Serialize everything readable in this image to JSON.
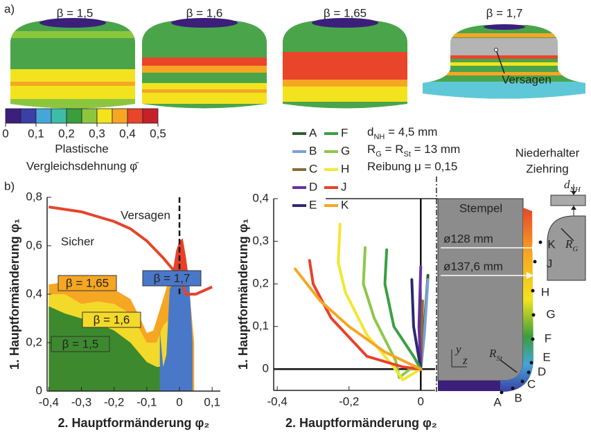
{
  "panel_a": {
    "label": "a)",
    "images": [
      "β = 1,5",
      "β = 1,6",
      "β = 1,65",
      "β = 1,7"
    ],
    "failure_label": "Versagen",
    "colorbar": {
      "colors": [
        "#3c1f7a",
        "#3b3fa6",
        "#45a6d8",
        "#3fbca8",
        "#3a9e3c",
        "#8cc63f",
        "#f3e31e",
        "#f6a623",
        "#e8452a",
        "#c8202a"
      ],
      "lim": [
        0,
        0.5
      ],
      "ticks": [
        0,
        {
          "value": 0.1,
          "label": "0,1"
        },
        {
          "value": 0.2,
          "label": "0,2"
        },
        {
          "value": 0.3,
          "label": "0,3"
        },
        {
          "value": 0.4,
          "label": "0,4"
        },
        {
          "value": 0.5,
          "label": "0,5"
        }
      ],
      "title": [
        "Plastische",
        "Vergleichsdehnung φ̄"
      ]
    }
  },
  "panel_b_label": "b)",
  "chart_data": [
    {
      "type": "area",
      "ylabel": "1. Hauptformänderung φ₁",
      "xlabel": "2. Hauptformänderung φ₂",
      "xlim": [
        -0.405,
        0.125
      ],
      "ylim": [
        0,
        0.8
      ],
      "xticks": [
        {
          "value": -0.4,
          "label": "-0,4"
        },
        {
          "value": -0.3,
          "label": "-0,3"
        },
        {
          "value": -0.2,
          "label": "-0,2"
        },
        {
          "value": -0.1,
          "label": "-0,1"
        },
        0,
        {
          "value": 0.1,
          "label": "0,1"
        }
      ],
      "yticks": [
        0,
        {
          "value": 0.2,
          "label": "0,2"
        },
        {
          "value": 0.4,
          "label": "0,4"
        },
        {
          "value": 0.6,
          "label": "0,6"
        },
        {
          "value": 0.8,
          "label": "0,8"
        }
      ],
      "x_zero_line": "dashed",
      "annotations": [
        "Sicher",
        "Versagen"
      ],
      "series": [
        {
          "name": "β = 1,65",
          "color": "#f5a623",
          "x": [
            -0.4,
            -0.35,
            -0.3,
            -0.25,
            -0.2,
            -0.15,
            -0.12,
            -0.1,
            -0.08,
            -0.05,
            -0.03,
            0,
            0.03,
            0.045
          ],
          "values": [
            0.44,
            0.45,
            0.43,
            0.44,
            0.42,
            0.38,
            0.3,
            0.24,
            0.25,
            0.38,
            0.47,
            0.48,
            0.42,
            0.2
          ]
        },
        {
          "name": "β = 1,6",
          "color": "#f3d92a",
          "x": [
            -0.4,
            -0.35,
            -0.3,
            -0.25,
            -0.2,
            -0.15,
            -0.12,
            -0.1,
            -0.07,
            -0.05,
            -0.03,
            0,
            0.02
          ],
          "values": [
            0.4,
            0.4,
            0.36,
            0.37,
            0.36,
            0.32,
            0.25,
            0.2,
            0.2,
            0.27,
            0.3,
            0.25,
            0.1
          ]
        },
        {
          "name": "β = 1,5",
          "color": "#3d8a2e",
          "x": [
            -0.4,
            -0.35,
            -0.3,
            -0.25,
            -0.2,
            -0.15,
            -0.1,
            -0.07,
            -0.05,
            -0.03,
            0,
            0.01
          ],
          "values": [
            0.35,
            0.32,
            0.3,
            0.28,
            0.25,
            0.2,
            0.12,
            0.1,
            0.1,
            0.05,
            0.06,
            0.02
          ]
        },
        {
          "color": "#e8412a",
          "x": [
            -0.02,
            -0.01,
            0,
            0.01,
            0.02,
            0.03
          ],
          "values": [
            0.5,
            0.58,
            0.62,
            0.63,
            0.55,
            0.45
          ]
        },
        {
          "name": "β = 1,7",
          "color": "#4a78c8",
          "x": [
            -0.06,
            -0.05,
            -0.04,
            -0.03,
            -0.02,
            0,
            0.02,
            0.03,
            0.04
          ],
          "values": [
            0.25,
            0.1,
            0.15,
            0.42,
            0.45,
            0.46,
            0.5,
            0.45,
            0.2
          ]
        },
        {
          "style": "line",
          "color": "#e5452b",
          "x": [
            -0.4,
            -0.3,
            -0.2,
            -0.15,
            -0.1,
            -0.05,
            0,
            0.02,
            0.05,
            0.1
          ],
          "values": [
            0.76,
            0.74,
            0.7,
            0.67,
            0.62,
            0.55,
            0.47,
            0.4,
            0.4,
            0.43
          ]
        }
      ]
    },
    {
      "type": "line",
      "ylabel": "1. Hauptformänderung φ₁",
      "xlabel": "2. Hauptformänderung φ₂",
      "xlim": [
        -0.41,
        0.04
      ],
      "ylim": [
        -0.05,
        0.4
      ],
      "xticks": [
        {
          "value": -0.4,
          "label": "-0,4"
        },
        {
          "value": -0.2,
          "label": "-0,2"
        },
        0
      ],
      "yticks": [
        0,
        {
          "value": 0.1,
          "label": "0,1"
        },
        {
          "value": 0.2,
          "label": "0,2"
        },
        {
          "value": 0.3,
          "label": "0,3"
        },
        {
          "value": 0.4,
          "label": "0,4"
        }
      ],
      "zero_lines": true,
      "parameters": [
        [
          {
            "text": "d"
          },
          {
            "sub": "NH"
          },
          {
            "text": " = 4,5 mm"
          }
        ],
        [
          {
            "text": "R"
          },
          {
            "sub": "G"
          },
          {
            "text": " = "
          },
          {
            "text": "R"
          },
          {
            "sub": "St"
          },
          {
            "text": " = 13 mm"
          }
        ],
        [
          {
            "text": "Reibung μ = 0,15"
          }
        ]
      ],
      "series": [
        {
          "name": "A",
          "color": "#2e5e2a",
          "x": [
            0.02,
            0.01,
            0
          ],
          "values": [
            0.22,
            0.1,
            0.02
          ]
        },
        {
          "name": "B",
          "color": "#7ca0d6",
          "x": [
            0.02,
            0.01,
            0
          ],
          "values": [
            0.21,
            0.08,
            0
          ]
        },
        {
          "name": "C",
          "color": "#8b6a3a",
          "x": [
            0.005,
            0
          ],
          "values": [
            0.16,
            0
          ]
        },
        {
          "name": "D",
          "color": "#6a2fa0",
          "x": [
            0,
            -0.005,
            0
          ],
          "values": [
            0.24,
            0.1,
            0
          ]
        },
        {
          "name": "E",
          "color": "#2b2a6e",
          "x": [
            -0.025,
            -0.02,
            0
          ],
          "values": [
            0.21,
            0.1,
            0
          ]
        },
        {
          "name": "F",
          "color": "#3aa040",
          "x": [
            -0.095,
            -0.1,
            -0.075,
            -0.02,
            0
          ],
          "values": [
            0.28,
            0.2,
            0.1,
            0.03,
            0
          ]
        },
        {
          "name": "G",
          "color": "#8cc84b",
          "x": [
            -0.155,
            -0.16,
            -0.13,
            -0.07,
            -0.06,
            -0.03,
            0
          ],
          "values": [
            0.285,
            0.2,
            0.12,
            0.02,
            -0.02,
            0,
            0
          ]
        },
        {
          "name": "H",
          "color": "#f2e632",
          "x": [
            -0.225,
            -0.23,
            -0.21,
            -0.15,
            -0.08,
            -0.05,
            0
          ],
          "values": [
            0.34,
            0.25,
            0.18,
            0.08,
            0.01,
            -0.025,
            0
          ]
        },
        {
          "name": "J",
          "color": "#e8412a",
          "x": [
            -0.31,
            -0.3,
            -0.25,
            -0.15,
            -0.05,
            0
          ],
          "values": [
            0.255,
            0.2,
            0.12,
            0.03,
            0.005,
            0
          ]
        },
        {
          "name": "K",
          "color": "#f5a623",
          "x": [
            -0.35,
            -0.28,
            -0.2,
            -0.1,
            0
          ],
          "values": [
            0.235,
            0.16,
            0.1,
            0.04,
            0
          ]
        }
      ]
    }
  ],
  "punch_diagram": {
    "stempel": "Stempel",
    "niederhalter": "Niederhalter",
    "ziehring": "Ziehring",
    "diameters": [
      "ø128 mm",
      "ø137,6 mm"
    ],
    "d_nh": [
      {
        "text": "d"
      },
      {
        "sub": "NH"
      }
    ],
    "r_st": [
      {
        "text": "R"
      },
      {
        "sub": "St"
      }
    ],
    "r_g": [
      {
        "text": "R"
      },
      {
        "sub": "G"
      }
    ],
    "points": [
      "A",
      "B",
      "C",
      "D",
      "E",
      "F",
      "G",
      "H",
      "J",
      "K"
    ],
    "axes": [
      "y",
      "z"
    ]
  }
}
